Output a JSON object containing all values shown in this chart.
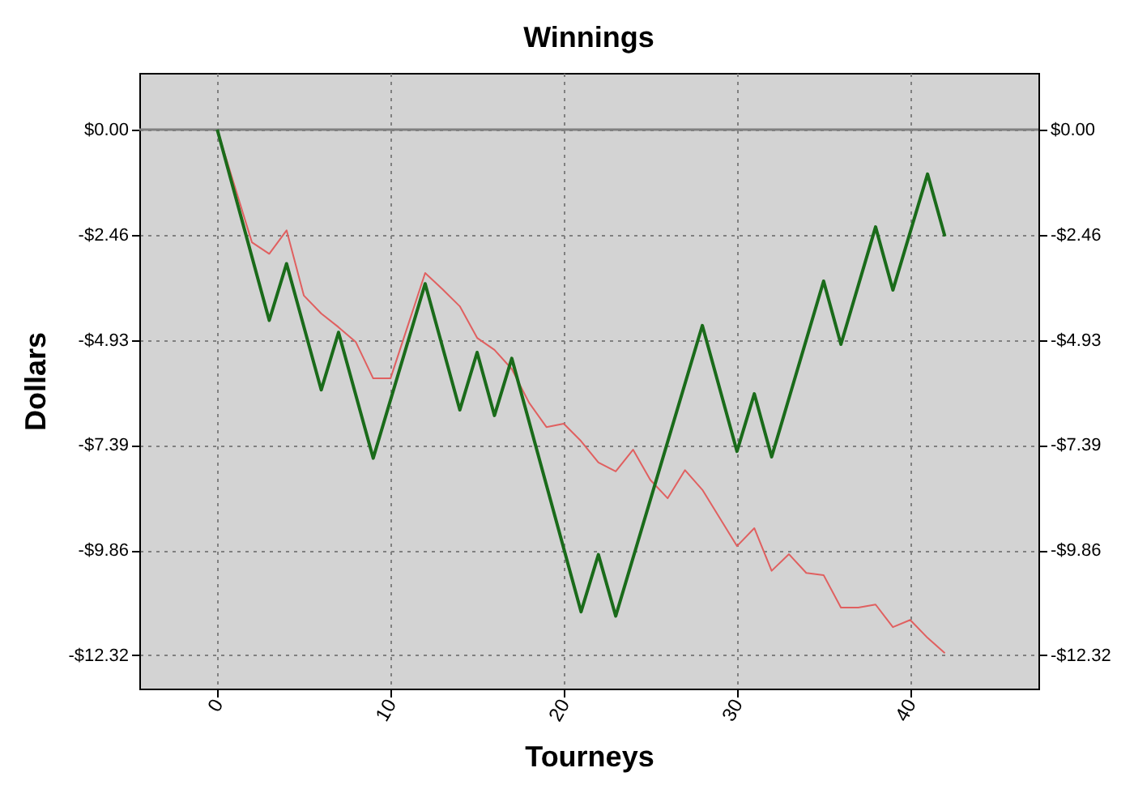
{
  "chart_data": {
    "type": "line",
    "title": "Winnings",
    "xlabel": "Tourneys",
    "ylabel": "Dollars",
    "xlim": [
      -4.5,
      47.4
    ],
    "xticks": [
      0,
      10,
      20,
      30,
      40
    ],
    "ylim": [
      -13.1,
      1.33
    ],
    "yticks": [
      {
        "value": 0,
        "label": "$0.00"
      },
      {
        "value": -2.46,
        "label": "-$2.46"
      },
      {
        "value": -4.93,
        "label": "-$4.93"
      },
      {
        "value": -7.39,
        "label": "-$7.39"
      },
      {
        "value": -9.86,
        "label": "-$9.86"
      },
      {
        "value": -12.32,
        "label": "-$12.32"
      }
    ],
    "y2lim": [
      -13.1,
      1.33
    ],
    "y2ticks": [
      {
        "value": 0,
        "label": "$0.00"
      },
      {
        "value": -2.46,
        "label": "-$2.46"
      },
      {
        "value": -4.93,
        "label": "-$4.93"
      },
      {
        "value": -7.39,
        "label": "-$7.39"
      },
      {
        "value": -9.86,
        "label": "-$9.86"
      },
      {
        "value": -12.32,
        "label": "-$12.32"
      }
    ],
    "grid": true,
    "marker": "none",
    "line_style": "solid",
    "ref_lines": [
      {
        "axis": "y",
        "value": 0,
        "label": null,
        "color": "#808080"
      }
    ],
    "series": [
      {
        "color": "#e06060",
        "x": [
          0,
          2,
          3,
          4,
          5,
          6,
          7,
          8,
          9,
          10,
          12,
          13,
          14,
          15,
          16,
          17,
          18,
          19,
          20,
          21,
          22,
          23,
          24,
          25,
          26,
          27,
          28,
          29,
          30,
          31,
          32,
          33,
          34,
          35,
          36,
          37,
          38,
          39,
          40,
          41,
          42
        ],
        "values": [
          0,
          -2.64,
          -2.91,
          -2.36,
          -3.89,
          -4.31,
          -4.63,
          -4.98,
          -5.83,
          -5.83,
          -3.36,
          -3.74,
          -4.14,
          -4.88,
          -5.16,
          -5.61,
          -6.4,
          -6.97,
          -6.89,
          -7.3,
          -7.8,
          -8.01,
          -7.5,
          -8.21,
          -8.64,
          -7.98,
          -8.44,
          -9.1,
          -9.76,
          -9.34,
          -10.34,
          -9.95,
          -10.39,
          -10.44,
          -11.2,
          -11.2,
          -11.13,
          -11.66,
          -11.49,
          -11.91,
          -12.27
        ]
      },
      {
        "color": "#1a6b1a",
        "x": [
          0,
          3,
          4,
          6,
          7,
          9,
          12,
          14,
          15,
          16,
          17,
          21,
          22,
          23,
          28,
          30,
          31,
          32,
          35,
          36,
          38,
          39,
          41,
          42
        ],
        "values": [
          0,
          -4.47,
          -3.14,
          -6.1,
          -4.75,
          -7.7,
          -3.61,
          -6.57,
          -5.22,
          -6.7,
          -5.36,
          -11.3,
          -9.96,
          -11.4,
          -4.59,
          -7.54,
          -6.19,
          -7.67,
          -3.55,
          -5.03,
          -2.28,
          -3.76,
          -1.04,
          -2.5
        ]
      }
    ]
  }
}
